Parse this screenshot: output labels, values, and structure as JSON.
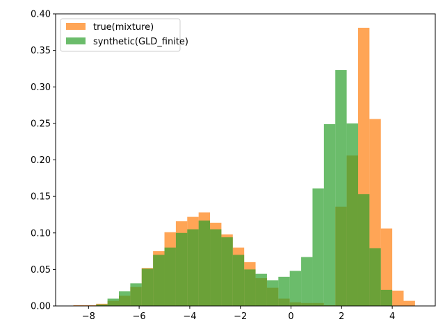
{
  "chart_data": {
    "type": "bar",
    "title": "",
    "xlabel": "",
    "ylabel": "",
    "xlim": [
      -9.3,
      5.7
    ],
    "ylim": [
      0,
      0.4
    ],
    "xticks": [
      -8,
      -6,
      -4,
      -2,
      0,
      2,
      4
    ],
    "yticks": [
      0.0,
      0.05,
      0.1,
      0.15,
      0.2,
      0.25,
      0.3,
      0.35,
      0.4
    ],
    "xtick_labels": [
      "−8",
      "−6",
      "−4",
      "−2",
      "0",
      "2",
      "4"
    ],
    "ytick_labels": [
      "0.00",
      "0.05",
      "0.10",
      "0.15",
      "0.20",
      "0.25",
      "0.30",
      "0.35",
      "0.40"
    ],
    "grid": false,
    "legend_position": "top-left",
    "series": [
      {
        "name": "true(mixture)",
        "color": "#ff7f0e",
        "alpha": 0.7,
        "bin_edges": [
          -8.6,
          -8.15,
          -7.7,
          -7.25,
          -6.8,
          -6.35,
          -5.9,
          -5.45,
          -5.0,
          -4.55,
          -4.1,
          -3.65,
          -3.2,
          -2.75,
          -2.3,
          -1.85,
          -1.4,
          -0.95,
          -0.5,
          -0.05,
          0.4,
          0.85,
          1.3,
          1.75,
          2.2,
          2.65,
          3.1,
          3.55,
          4.0,
          4.45,
          4.9
        ],
        "values": [
          0.001,
          0.001,
          0.003,
          0.007,
          0.014,
          0.026,
          0.052,
          0.075,
          0.101,
          0.116,
          0.122,
          0.128,
          0.114,
          0.098,
          0.08,
          0.06,
          0.038,
          0.025,
          0.01,
          0.005,
          0.004,
          0.004,
          0.001,
          0.136,
          0.206,
          0.381,
          0.256,
          0.106,
          0.021,
          0.007
        ]
      },
      {
        "name": "synthetic(GLD_finite)",
        "color": "#2ca02c",
        "alpha": 0.7,
        "bin_edges": [
          -7.7,
          -7.25,
          -6.8,
          -6.35,
          -5.9,
          -5.45,
          -5.0,
          -4.55,
          -4.1,
          -3.65,
          -3.2,
          -2.75,
          -2.3,
          -1.85,
          -1.4,
          -0.95,
          -0.5,
          -0.05,
          0.4,
          0.85,
          1.3,
          1.75,
          2.2,
          2.65,
          3.1,
          3.55,
          4.0,
          4.45
        ],
        "values": [
          0.002,
          0.01,
          0.02,
          0.031,
          0.051,
          0.07,
          0.08,
          0.1,
          0.105,
          0.117,
          0.105,
          0.094,
          0.07,
          0.05,
          0.044,
          0.035,
          0.04,
          0.048,
          0.067,
          0.161,
          0.249,
          0.323,
          0.25,
          0.153,
          0.079,
          0.022,
          0.0
        ]
      }
    ]
  }
}
